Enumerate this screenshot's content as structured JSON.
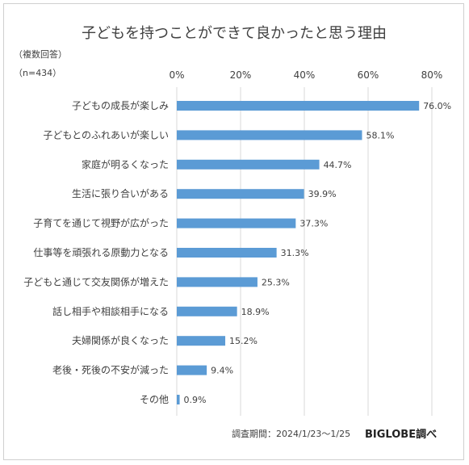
{
  "chart_data": {
    "type": "bar",
    "orientation": "horizontal",
    "title": "子どもを持つことができて良かったと思う理由",
    "subtitle_lines": [
      "（複数回答）",
      "（n=434）"
    ],
    "x_ticks": [
      "0%",
      "20%",
      "40%",
      "60%",
      "80%"
    ],
    "xlim": [
      0,
      80
    ],
    "grid": true,
    "bar_color": "#5b9bd5",
    "categories": [
      "子どもの成長が楽しみ",
      "子どもとのふれあいが楽しい",
      "家庭が明るくなった",
      "生活に張り合いがある",
      "子育てを通じて視野が広がった",
      "仕事等を頑張れる原動力となる",
      "子どもと通じて交友関係が増えた",
      "話し相手や相談相手になる",
      "夫婦関係が良くなった",
      "老後・死後の不安が減った",
      "その他"
    ],
    "values": [
      76.0,
      58.1,
      44.7,
      39.9,
      37.3,
      31.3,
      25.3,
      18.9,
      15.2,
      9.4,
      0.9
    ],
    "value_labels": [
      "76.0%",
      "58.1%",
      "44.7%",
      "39.9%",
      "37.3%",
      "31.3%",
      "25.3%",
      "18.9%",
      "15.2%",
      "9.4%",
      "0.9%"
    ]
  },
  "footer": {
    "survey_period": "調査期間：2024/1/23〜1/25",
    "brand": "BIGLOBE調べ"
  }
}
